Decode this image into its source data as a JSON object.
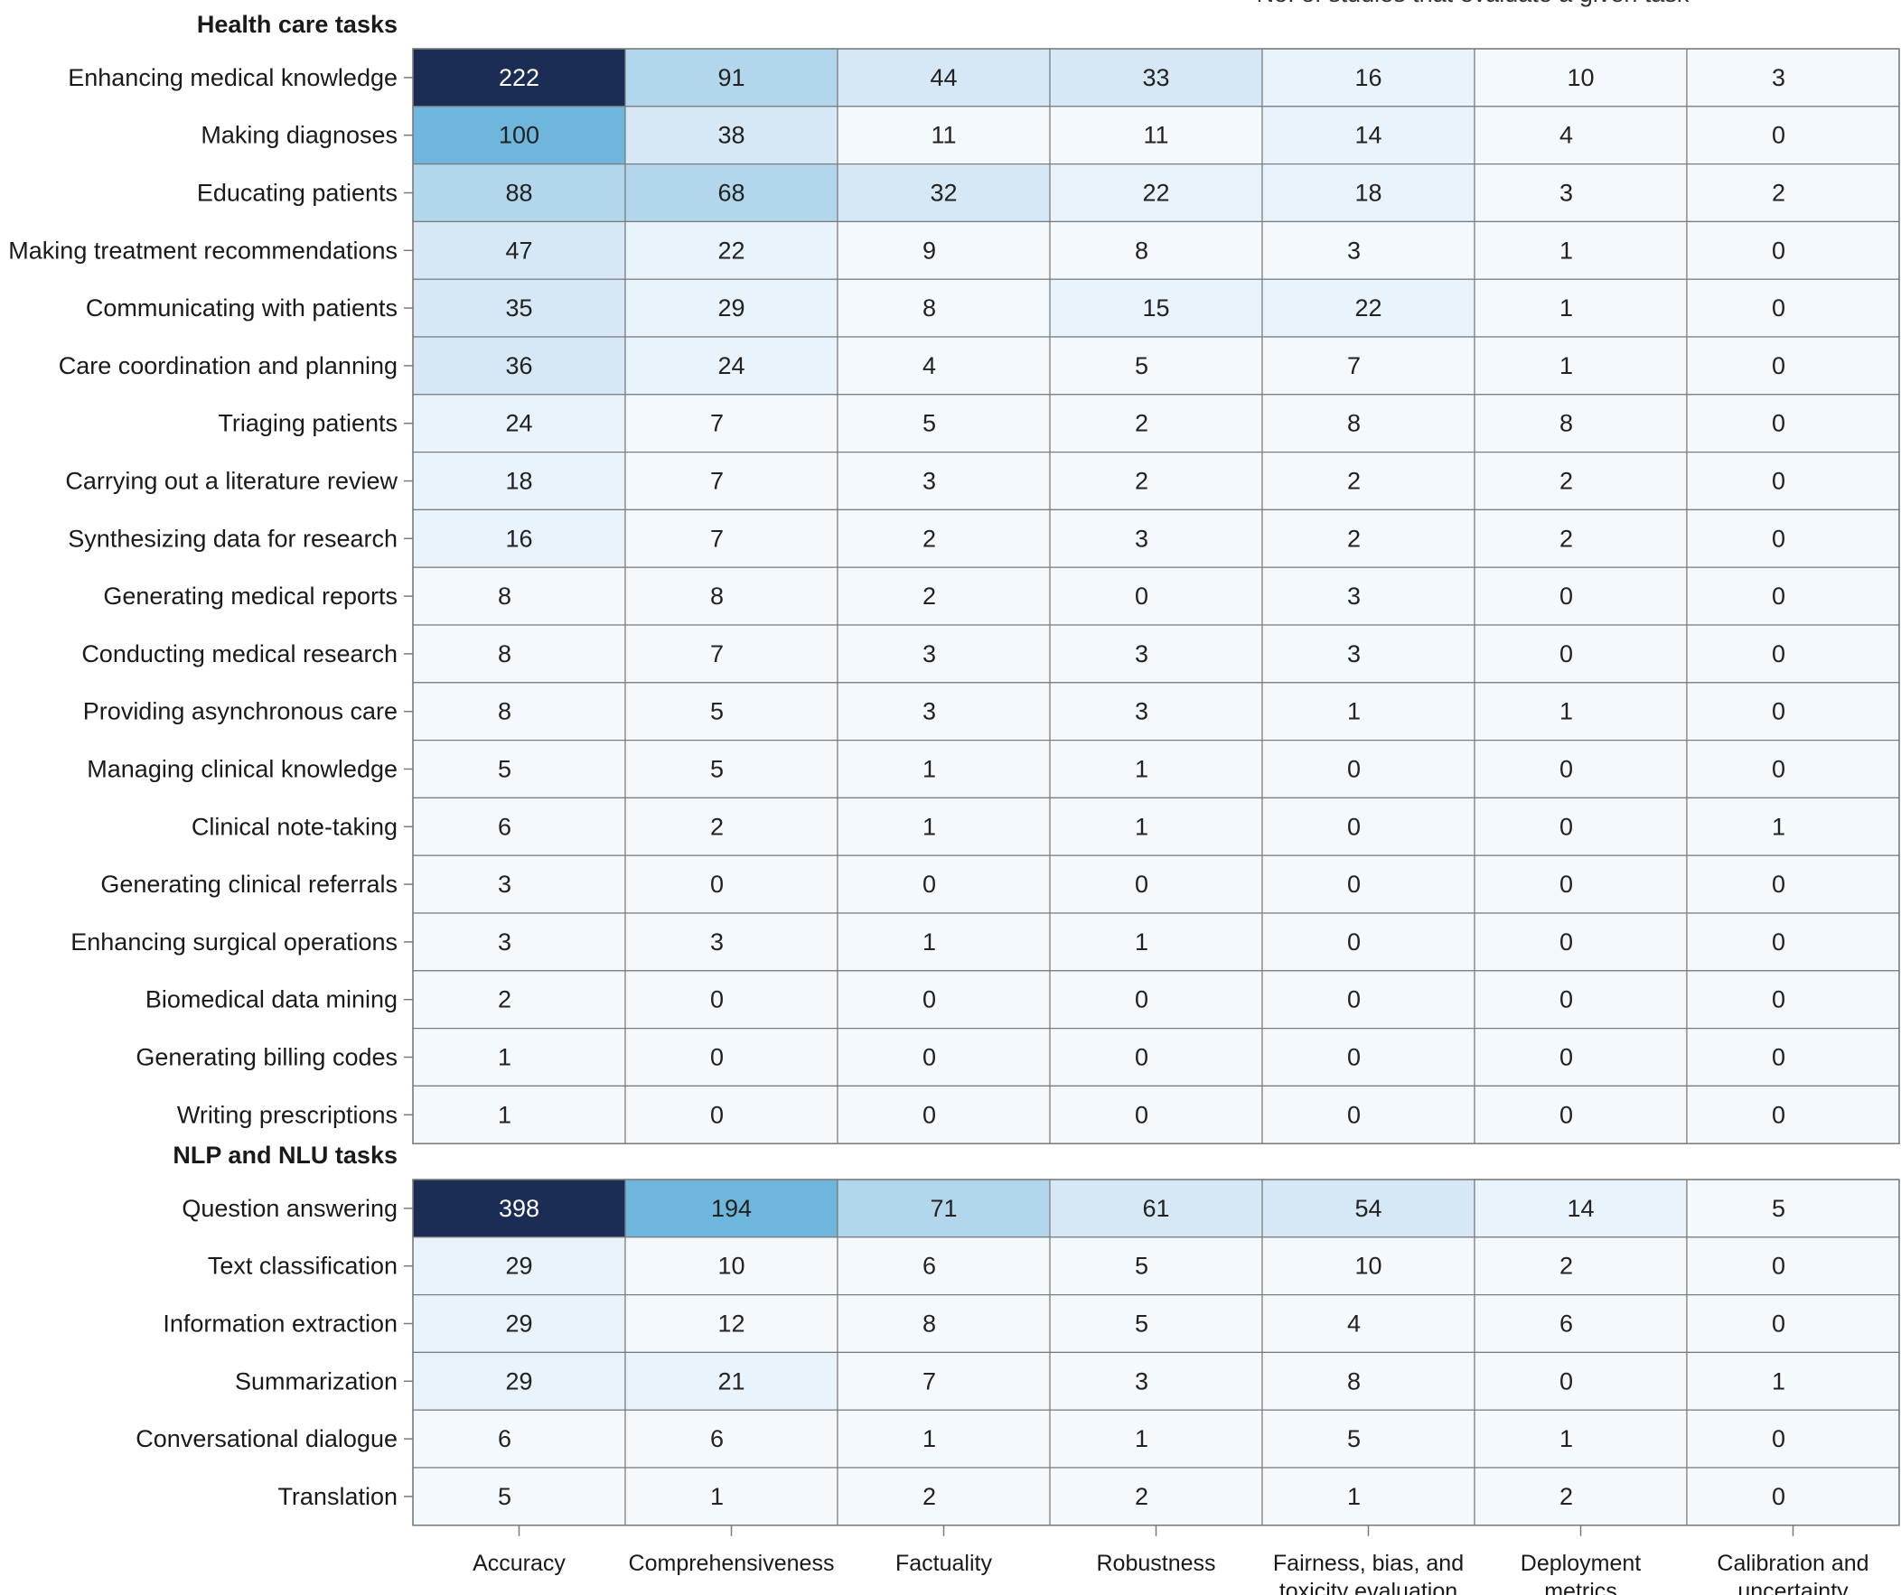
{
  "chart_data": {
    "type": "heatmap",
    "legend_label": "No. of studies that evaluate a given task",
    "columns": [
      [
        "Accuracy"
      ],
      [
        "Comprehensiveness"
      ],
      [
        "Factuality"
      ],
      [
        "Robustness"
      ],
      [
        "Fairness, bias, and",
        "toxicity evaluation"
      ],
      [
        "Deployment",
        "metrics"
      ],
      [
        "Calibration and",
        "uncertainty"
      ]
    ],
    "groups": [
      {
        "title": "Health care tasks",
        "rows": [
          {
            "label": "Enhancing medical knowledge",
            "values": [
              222,
              91,
              44,
              33,
              16,
              10,
              3
            ]
          },
          {
            "label": "Making diagnoses",
            "values": [
              100,
              38,
              11,
              11,
              14,
              4,
              0
            ]
          },
          {
            "label": "Educating patients",
            "values": [
              88,
              68,
              32,
              22,
              18,
              3,
              2
            ]
          },
          {
            "label": "Making treatment recommendations",
            "values": [
              47,
              22,
              9,
              8,
              3,
              1,
              0
            ]
          },
          {
            "label": "Communicating with patients",
            "values": [
              35,
              29,
              8,
              15,
              22,
              1,
              0
            ]
          },
          {
            "label": "Care coordination and planning",
            "values": [
              36,
              24,
              4,
              5,
              7,
              1,
              0
            ]
          },
          {
            "label": "Triaging patients",
            "values": [
              24,
              7,
              5,
              2,
              8,
              8,
              0
            ]
          },
          {
            "label": "Carrying out a literature review",
            "values": [
              18,
              7,
              3,
              2,
              2,
              2,
              0
            ]
          },
          {
            "label": "Synthesizing data for research",
            "values": [
              16,
              7,
              2,
              3,
              2,
              2,
              0
            ]
          },
          {
            "label": "Generating medical reports",
            "values": [
              8,
              8,
              2,
              0,
              3,
              0,
              0
            ]
          },
          {
            "label": "Conducting medical research",
            "values": [
              8,
              7,
              3,
              3,
              3,
              0,
              0
            ]
          },
          {
            "label": "Providing asynchronous care",
            "values": [
              8,
              5,
              3,
              3,
              1,
              1,
              0
            ]
          },
          {
            "label": "Managing clinical knowledge",
            "values": [
              5,
              5,
              1,
              1,
              0,
              0,
              0
            ]
          },
          {
            "label": "Clinical note-taking",
            "values": [
              6,
              2,
              1,
              1,
              0,
              0,
              1
            ]
          },
          {
            "label": "Generating clinical referrals",
            "values": [
              3,
              0,
              0,
              0,
              0,
              0,
              0
            ]
          },
          {
            "label": "Enhancing surgical operations",
            "values": [
              3,
              3,
              1,
              1,
              0,
              0,
              0
            ]
          },
          {
            "label": "Biomedical data mining",
            "values": [
              2,
              0,
              0,
              0,
              0,
              0,
              0
            ]
          },
          {
            "label": "Generating billing codes",
            "values": [
              1,
              0,
              0,
              0,
              0,
              0,
              0
            ]
          },
          {
            "label": "Writing prescriptions",
            "values": [
              1,
              0,
              0,
              0,
              0,
              0,
              0
            ]
          }
        ]
      },
      {
        "title": "NLP and NLU tasks",
        "rows": [
          {
            "label": "Question answering",
            "values": [
              398,
              194,
              71,
              61,
              54,
              14,
              5
            ]
          },
          {
            "label": "Text classification",
            "values": [
              29,
              10,
              6,
              5,
              10,
              2,
              0
            ]
          },
          {
            "label": "Information extraction",
            "values": [
              29,
              12,
              8,
              5,
              4,
              6,
              0
            ]
          },
          {
            "label": "Summarization",
            "values": [
              29,
              21,
              7,
              3,
              8,
              0,
              1
            ]
          },
          {
            "label": "Conversational dialogue",
            "values": [
              6,
              6,
              1,
              1,
              5,
              1,
              0
            ]
          },
          {
            "label": "Translation",
            "values": [
              5,
              1,
              2,
              2,
              1,
              2,
              0
            ]
          }
        ]
      }
    ],
    "colors": {
      "darkest": "#1b2d55",
      "strong": "#6fb6dc",
      "medium": "#b2d7ec",
      "light": "#d6e8f5",
      "lighter": "#e9f3fb",
      "lightest": "#f4f9fd",
      "grid": "#7a7a7a",
      "text_dark_cell": "#ffffff",
      "text_light_cell": "#222222"
    }
  }
}
